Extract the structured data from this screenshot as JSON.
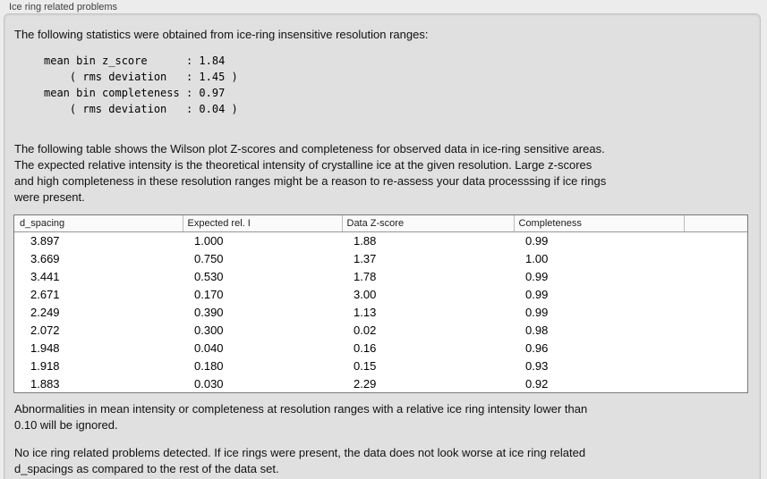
{
  "window": {
    "title": "Ice ring related problems"
  },
  "colors": {
    "window_bg": "#ececec",
    "panel_bg": "#e0e0e0",
    "table_bg": "#ffffff",
    "text": "#111111"
  },
  "intro": "The following statistics were obtained from ice-ring insensitive resolution ranges:",
  "statistics": {
    "block_text": "mean bin z_score      : 1.84\n    ( rms deviation   : 1.45 )\nmean bin completeness : 0.97\n    ( rms deviation   : 0.04 )",
    "mean_bin_z_score": "1.84",
    "z_score_rms_deviation": "1.45",
    "mean_bin_completeness": "0.97",
    "completeness_rms_deviation": "0.04"
  },
  "table_description": "The following table shows the Wilson plot Z-scores and completeness for observed data in ice-ring sensitive areas.\nThe expected relative intensity is the theoretical intensity of crystalline ice at the given resolution. Large z-scores\nand high completeness in these resolution ranges might be a reason to re-assess your data processsing if ice rings\nwere present.",
  "table": {
    "columns": [
      "d_spacing",
      "Expected rel. I",
      "Data Z-score",
      "Completeness",
      ""
    ],
    "rows": [
      [
        "3.897",
        "1.000",
        "1.88",
        "0.99"
      ],
      [
        "3.669",
        "0.750",
        "1.37",
        "1.00"
      ],
      [
        "3.441",
        "0.530",
        "1.78",
        "0.99"
      ],
      [
        "2.671",
        "0.170",
        "3.00",
        "0.99"
      ],
      [
        "2.249",
        "0.390",
        "1.13",
        "0.99"
      ],
      [
        "2.072",
        "0.300",
        "0.02",
        "0.98"
      ],
      [
        "1.948",
        "0.040",
        "0.16",
        "0.96"
      ],
      [
        "1.918",
        "0.180",
        "0.15",
        "0.93"
      ],
      [
        "1.883",
        "0.030",
        "2.29",
        "0.92"
      ]
    ]
  },
  "ignore_note": "Abnormalities in mean intensity or completeness at resolution ranges with a relative ice ring intensity lower than\n0.10 will be ignored.",
  "conclusion": "No ice ring related problems detected. If ice rings were present, the data does not look worse at ice ring related\nd_spacings as compared to the rest of the data set."
}
